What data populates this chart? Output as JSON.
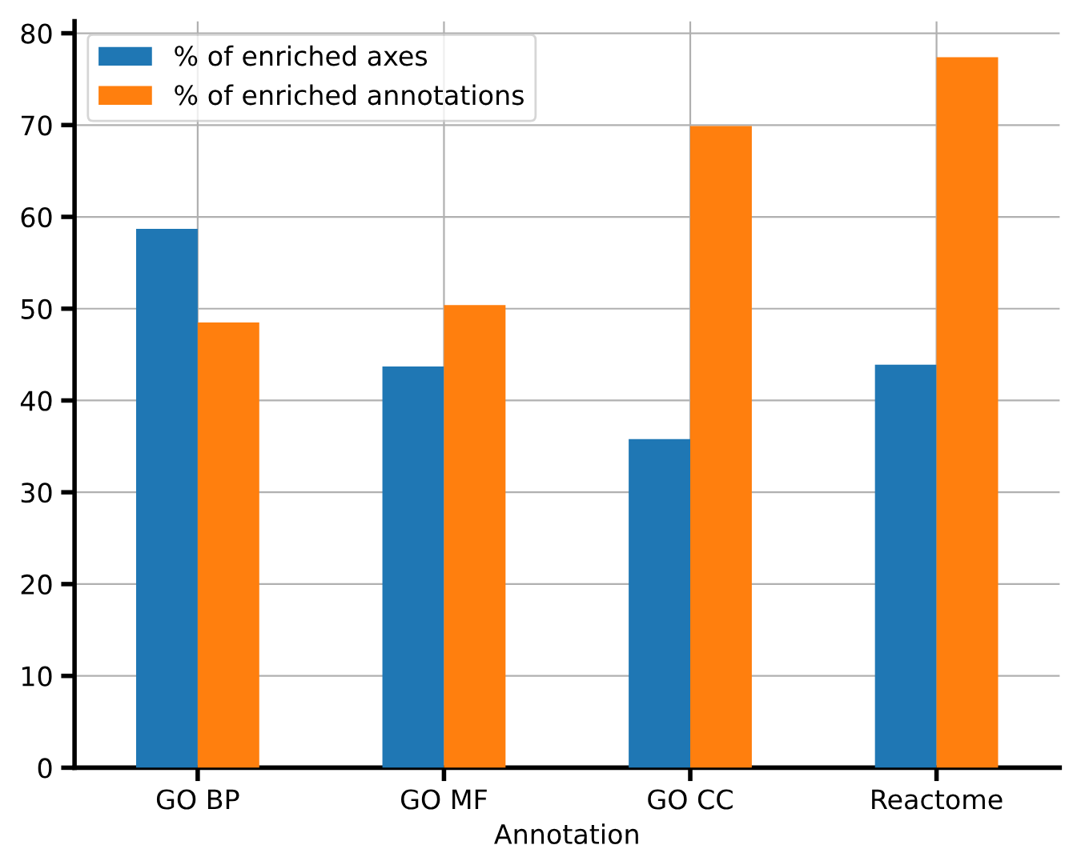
{
  "chart_data": {
    "type": "bar",
    "xlabel": "Annotation",
    "categories": [
      "GO BP",
      "GO MF",
      "GO CC",
      "Reactome"
    ],
    "series": [
      {
        "name": "% of enriched axes",
        "color": "#1f77b4",
        "values": [
          58.7,
          43.7,
          35.8,
          43.9
        ]
      },
      {
        "name": "% of enriched annotations",
        "color": "#ff7f0e",
        "values": [
          48.5,
          50.4,
          69.9,
          77.4
        ]
      }
    ],
    "ylim": [
      0,
      81.3
    ],
    "yticks": [
      0,
      10,
      20,
      30,
      40,
      50,
      60,
      70,
      80
    ],
    "grid": true,
    "legend": "top left"
  }
}
